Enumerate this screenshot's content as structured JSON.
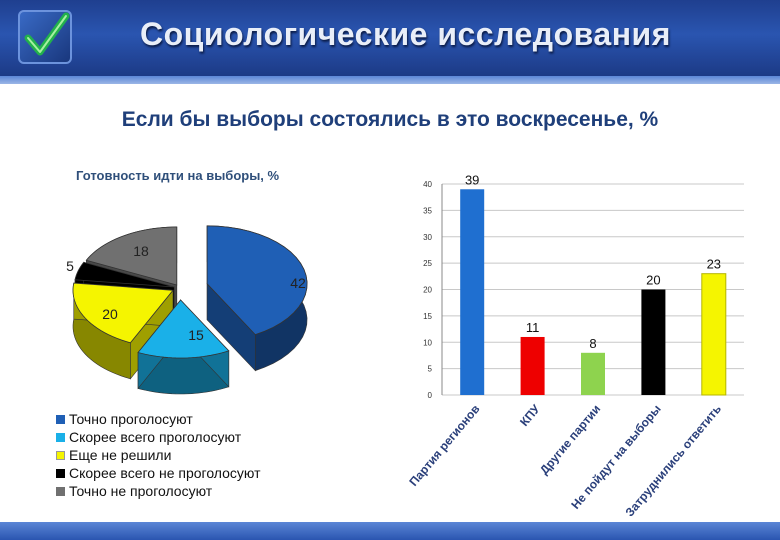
{
  "header": {
    "title": "Социологические исследования"
  },
  "subtitle": "Если бы выборы состоялись в это воскресенье, %",
  "chart_data": [
    {
      "type": "pie",
      "title": "Готовность идти на выборы, %",
      "categories": [
        "Точно проголосуют",
        "Скорее всего проголосуют",
        "Еще не решили",
        "Скорее всего не проголосуют",
        "Точно не проголосуют"
      ],
      "values": [
        42,
        15,
        20,
        5,
        18
      ],
      "colors": [
        "#1f5fb5",
        "#1ab0e8",
        "#f5f500",
        "#000000",
        "#707070"
      ],
      "legend": "bottom-left"
    },
    {
      "type": "bar",
      "categories": [
        "Партия регионов",
        "КПУ",
        "Другие партии",
        "Не пойдут на выборы",
        "Затруднились ответить"
      ],
      "values": [
        39,
        11,
        8,
        20,
        23
      ],
      "colors": [
        "#1f6fd0",
        "#ee0000",
        "#8ed34e",
        "#000000",
        "#f5f500"
      ],
      "ylim": [
        0,
        40
      ],
      "yticks": [
        0,
        5,
        10,
        15,
        20,
        25,
        30,
        35,
        40
      ],
      "grid": true
    }
  ]
}
